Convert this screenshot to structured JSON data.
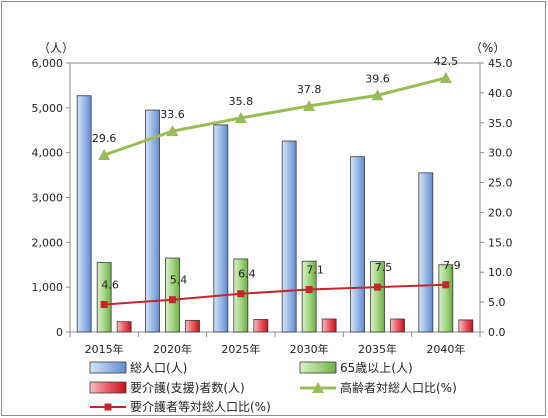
{
  "chart_data": {
    "type": "bar",
    "categories": [
      "2015年",
      "2020年",
      "2025年",
      "2030年",
      "2035年",
      "2040年"
    ],
    "left_axis": {
      "unit": "（人）",
      "ylim": [
        0,
        6000
      ],
      "ticks": [
        "0",
        "1,000",
        "2,000",
        "3,000",
        "4,000",
        "5,000",
        "6,000"
      ]
    },
    "right_axis": {
      "unit": "（%）",
      "ylim": [
        0,
        45
      ],
      "ticks": [
        "0.0",
        "5.0",
        "10.0",
        "15.0",
        "20.0",
        "25.0",
        "30.0",
        "35.0",
        "40.0",
        "45.0"
      ]
    },
    "bar_series": [
      {
        "name": "総人口(人)",
        "axis": "left",
        "color": "#6f9ad6",
        "values": [
          5270,
          4950,
          4620,
          4260,
          3910,
          3550
        ]
      },
      {
        "name": "65歳以上(人)",
        "axis": "left",
        "color": "#7fbf5a",
        "values": [
          1550,
          1650,
          1630,
          1580,
          1570,
          1500
        ]
      },
      {
        "name": "要介護(支援)者数(人)",
        "axis": "left",
        "color": "#d9232e",
        "values": [
          230,
          260,
          280,
          290,
          290,
          270
        ]
      }
    ],
    "line_series": [
      {
        "name": "高齢者対総人口比(%)",
        "axis": "right",
        "color": "#9bbb59",
        "marker": "triangle",
        "values": [
          29.6,
          33.6,
          35.8,
          37.8,
          39.6,
          42.5
        ],
        "labels": [
          "29.6",
          "33.6",
          "35.8",
          "37.8",
          "39.6",
          "42.5"
        ]
      },
      {
        "name": "要介護者等対総人口比(%)",
        "axis": "right",
        "color": "#c0282d",
        "marker": "square",
        "values": [
          4.6,
          5.4,
          6.4,
          7.1,
          7.5,
          7.9
        ],
        "labels": [
          "4.6",
          "5.4",
          "6.4",
          "7.1",
          "7.5",
          "7.9"
        ]
      }
    ],
    "legend_placement": "bottom",
    "grid": false
  }
}
